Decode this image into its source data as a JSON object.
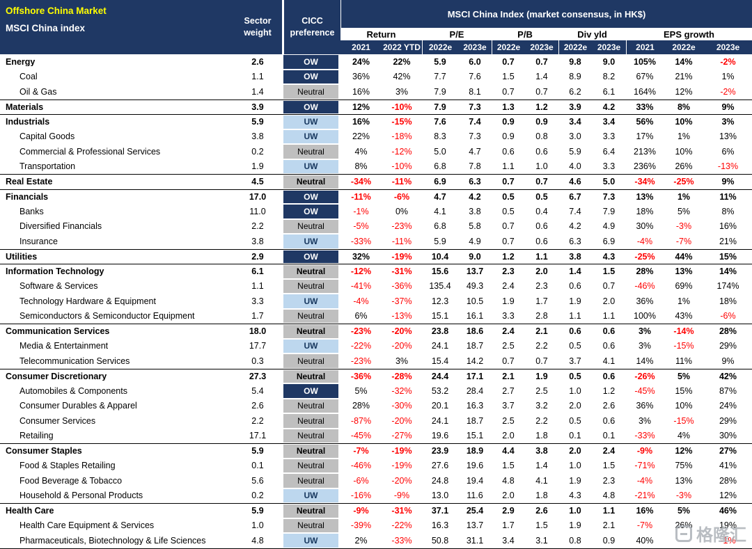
{
  "header": {
    "title_line1": "Offshore China Market",
    "title_line2": "MSCI China index",
    "sector_weight_label": "Sector weight",
    "cicc_label": "CICC preference",
    "index_banner": "MSCI China Index (market consensus, in HK$)",
    "groups": [
      {
        "label": "Return",
        "cols": [
          "2021",
          "2022 YTD"
        ]
      },
      {
        "label": "P/E",
        "cols": [
          "2022e",
          "2023e"
        ]
      },
      {
        "label": "P/B",
        "cols": [
          "2022e",
          "2023e"
        ]
      },
      {
        "label": "Div yld",
        "cols": [
          "2022e",
          "2023e"
        ]
      },
      {
        "label": "EPS growth",
        "cols": [
          "2021",
          "2022e",
          "2023e"
        ]
      }
    ]
  },
  "colors": {
    "navy": "#1F3864",
    "title_yellow": "#FFFF00",
    "uw_blue": "#BDD7EE",
    "neutral_gray": "#BFBFBF",
    "negative_red": "#FF0000"
  },
  "rows": [
    {
      "name": "Energy",
      "bold": true,
      "weight": "2.6",
      "pref": "OW",
      "values": [
        "24%",
        "22%",
        "5.9",
        "6.0",
        "0.7",
        "0.7",
        "9.8",
        "9.0",
        "105%",
        "14%",
        "-2%"
      ]
    },
    {
      "name": "Coal",
      "bold": false,
      "weight": "1.1",
      "pref": "OW",
      "values": [
        "36%",
        "42%",
        "7.7",
        "7.6",
        "1.5",
        "1.4",
        "8.9",
        "8.2",
        "67%",
        "21%",
        "1%"
      ]
    },
    {
      "name": "Oil & Gas",
      "bold": false,
      "weight": "1.4",
      "pref": "Neutral",
      "values": [
        "16%",
        "3%",
        "7.9",
        "8.1",
        "0.7",
        "0.7",
        "6.2",
        "6.1",
        "164%",
        "12%",
        "-2%"
      ]
    },
    {
      "name": "Materials",
      "bold": true,
      "weight": "3.9",
      "pref": "OW",
      "values": [
        "12%",
        "-10%",
        "7.9",
        "7.3",
        "1.3",
        "1.2",
        "3.9",
        "4.2",
        "33%",
        "8%",
        "9%"
      ]
    },
    {
      "name": "Industrials",
      "bold": true,
      "weight": "5.9",
      "pref": "UW",
      "values": [
        "16%",
        "-15%",
        "7.6",
        "7.4",
        "0.9",
        "0.9",
        "3.4",
        "3.4",
        "56%",
        "10%",
        "3%"
      ]
    },
    {
      "name": "Capital Goods",
      "bold": false,
      "weight": "3.8",
      "pref": "UW",
      "values": [
        "22%",
        "-18%",
        "8.3",
        "7.3",
        "0.9",
        "0.8",
        "3.0",
        "3.3",
        "17%",
        "1%",
        "13%"
      ]
    },
    {
      "name": "Commercial & Professional Services",
      "bold": false,
      "weight": "0.2",
      "pref": "Neutral",
      "values": [
        "4%",
        "-12%",
        "5.0",
        "4.7",
        "0.6",
        "0.6",
        "5.9",
        "6.4",
        "213%",
        "10%",
        "6%"
      ]
    },
    {
      "name": "Transportation",
      "bold": false,
      "weight": "1.9",
      "pref": "UW",
      "values": [
        "8%",
        "-10%",
        "6.8",
        "7.8",
        "1.1",
        "1.0",
        "4.0",
        "3.3",
        "236%",
        "26%",
        "-13%"
      ]
    },
    {
      "name": "Real Estate",
      "bold": true,
      "weight": "4.5",
      "pref": "Neutral",
      "values": [
        "-34%",
        "-11%",
        "6.9",
        "6.3",
        "0.7",
        "0.7",
        "4.6",
        "5.0",
        "-34%",
        "-25%",
        "9%"
      ]
    },
    {
      "name": "Financials",
      "bold": true,
      "weight": "17.0",
      "pref": "OW",
      "values": [
        "-11%",
        "-6%",
        "4.7",
        "4.2",
        "0.5",
        "0.5",
        "6.7",
        "7.3",
        "13%",
        "1%",
        "11%"
      ]
    },
    {
      "name": "Banks",
      "bold": false,
      "weight": "11.0",
      "pref": "OW",
      "values": [
        "-1%",
        "0%",
        "4.1",
        "3.8",
        "0.5",
        "0.4",
        "7.4",
        "7.9",
        "18%",
        "5%",
        "8%"
      ]
    },
    {
      "name": "Diversified Financials",
      "bold": false,
      "weight": "2.2",
      "pref": "Neutral",
      "values": [
        "-5%",
        "-23%",
        "6.8",
        "5.8",
        "0.7",
        "0.6",
        "4.2",
        "4.9",
        "30%",
        "-3%",
        "16%"
      ]
    },
    {
      "name": "Insurance",
      "bold": false,
      "weight": "3.8",
      "pref": "UW",
      "values": [
        "-33%",
        "-11%",
        "5.9",
        "4.9",
        "0.7",
        "0.6",
        "6.3",
        "6.9",
        "-4%",
        "-7%",
        "21%"
      ]
    },
    {
      "name": "Utilities",
      "bold": true,
      "weight": "2.9",
      "pref": "OW",
      "values": [
        "32%",
        "-19%",
        "10.4",
        "9.0",
        "1.2",
        "1.1",
        "3.8",
        "4.3",
        "-25%",
        "44%",
        "15%"
      ]
    },
    {
      "name": "Information Technology",
      "bold": true,
      "weight": "6.1",
      "pref": "Neutral",
      "values": [
        "-12%",
        "-31%",
        "15.6",
        "13.7",
        "2.3",
        "2.0",
        "1.4",
        "1.5",
        "28%",
        "13%",
        "14%"
      ]
    },
    {
      "name": "Software & Services",
      "bold": false,
      "weight": "1.1",
      "pref": "Neutral",
      "values": [
        "-41%",
        "-36%",
        "135.4",
        "49.3",
        "2.4",
        "2.3",
        "0.6",
        "0.7",
        "-46%",
        "69%",
        "174%"
      ]
    },
    {
      "name": "Technology Hardware & Equipment",
      "bold": false,
      "weight": "3.3",
      "pref": "UW",
      "values": [
        "-4%",
        "-37%",
        "12.3",
        "10.5",
        "1.9",
        "1.7",
        "1.9",
        "2.0",
        "36%",
        "1%",
        "18%"
      ]
    },
    {
      "name": "Semiconductors & Semiconductor Equipment",
      "bold": false,
      "weight": "1.7",
      "pref": "Neutral",
      "values": [
        "6%",
        "-13%",
        "15.1",
        "16.1",
        "3.3",
        "2.8",
        "1.1",
        "1.1",
        "100%",
        "43%",
        "-6%"
      ]
    },
    {
      "name": "Communication Services",
      "bold": true,
      "weight": "18.0",
      "pref": "Neutral",
      "values": [
        "-23%",
        "-20%",
        "23.8",
        "18.6",
        "2.4",
        "2.1",
        "0.6",
        "0.6",
        "3%",
        "-14%",
        "28%"
      ]
    },
    {
      "name": "Media & Entertainment",
      "bold": false,
      "weight": "17.7",
      "pref": "UW",
      "values": [
        "-22%",
        "-20%",
        "24.1",
        "18.7",
        "2.5",
        "2.2",
        "0.5",
        "0.6",
        "3%",
        "-15%",
        "29%"
      ]
    },
    {
      "name": "Telecommunication Services",
      "bold": false,
      "weight": "0.3",
      "pref": "Neutral",
      "values": [
        "-23%",
        "3%",
        "15.4",
        "14.2",
        "0.7",
        "0.7",
        "3.7",
        "4.1",
        "14%",
        "11%",
        "9%"
      ]
    },
    {
      "name": "Consumer Discretionary",
      "bold": true,
      "weight": "27.3",
      "pref": "Neutral",
      "values": [
        "-36%",
        "-28%",
        "24.4",
        "17.1",
        "2.1",
        "1.9",
        "0.5",
        "0.6",
        "-26%",
        "5%",
        "42%"
      ]
    },
    {
      "name": "Automobiles & Components",
      "bold": false,
      "weight": "5.4",
      "pref": "OW",
      "values": [
        "5%",
        "-32%",
        "53.2",
        "28.4",
        "2.7",
        "2.5",
        "1.0",
        "1.2",
        "-45%",
        "15%",
        "87%"
      ]
    },
    {
      "name": "Consumer Durables & Apparel",
      "bold": false,
      "weight": "2.6",
      "pref": "Neutral",
      "values": [
        "28%",
        "-30%",
        "20.1",
        "16.3",
        "3.7",
        "3.2",
        "2.0",
        "2.6",
        "36%",
        "10%",
        "24%"
      ]
    },
    {
      "name": "Consumer Services",
      "bold": false,
      "weight": "2.2",
      "pref": "Neutral",
      "values": [
        "-87%",
        "-20%",
        "24.1",
        "18.7",
        "2.5",
        "2.2",
        "0.5",
        "0.6",
        "3%",
        "-15%",
        "29%"
      ]
    },
    {
      "name": "Retailing",
      "bold": false,
      "weight": "17.1",
      "pref": "Neutral",
      "values": [
        "-45%",
        "-27%",
        "19.6",
        "15.1",
        "2.0",
        "1.8",
        "0.1",
        "0.1",
        "-33%",
        "4%",
        "30%"
      ]
    },
    {
      "name": "Consumer Staples",
      "bold": true,
      "weight": "5.9",
      "pref": "Neutral",
      "values": [
        "-7%",
        "-19%",
        "23.9",
        "18.9",
        "4.4",
        "3.8",
        "2.0",
        "2.4",
        "-9%",
        "12%",
        "27%"
      ]
    },
    {
      "name": "Food & Staples Retailing",
      "bold": false,
      "weight": "0.1",
      "pref": "Neutral",
      "values": [
        "-46%",
        "-19%",
        "27.6",
        "19.6",
        "1.5",
        "1.4",
        "1.0",
        "1.5",
        "-71%",
        "75%",
        "41%"
      ]
    },
    {
      "name": "Food Beverage & Tobacco",
      "bold": false,
      "weight": "5.6",
      "pref": "Neutral",
      "values": [
        "-6%",
        "-20%",
        "24.8",
        "19.4",
        "4.8",
        "4.1",
        "1.9",
        "2.3",
        "-4%",
        "13%",
        "28%"
      ]
    },
    {
      "name": "Household & Personal Products",
      "bold": false,
      "weight": "0.2",
      "pref": "UW",
      "values": [
        "-16%",
        "-9%",
        "13.0",
        "11.6",
        "2.0",
        "1.8",
        "4.3",
        "4.8",
        "-21%",
        "-3%",
        "12%"
      ]
    },
    {
      "name": "Health Care",
      "bold": true,
      "weight": "5.9",
      "pref": "Neutral",
      "values": [
        "-9%",
        "-31%",
        "37.1",
        "25.4",
        "2.9",
        "2.6",
        "1.0",
        "1.1",
        "16%",
        "5%",
        "46%"
      ]
    },
    {
      "name": "Health Care Equipment & Services",
      "bold": false,
      "weight": "1.0",
      "pref": "Neutral",
      "values": [
        "-39%",
        "-22%",
        "16.3",
        "13.7",
        "1.7",
        "1.5",
        "1.9",
        "2.1",
        "-7%",
        "26%",
        "19%"
      ]
    },
    {
      "name": "Pharmaceuticals, Biotechnology & Life Sciences",
      "bold": false,
      "weight": "4.8",
      "pref": "UW",
      "values": [
        "2%",
        "-33%",
        "50.8",
        "31.1",
        "3.4",
        "3.1",
        "0.8",
        "0.9",
        "40%",
        "",
        "-1%"
      ]
    }
  ],
  "watermark": {
    "text": "格隆汇"
  }
}
